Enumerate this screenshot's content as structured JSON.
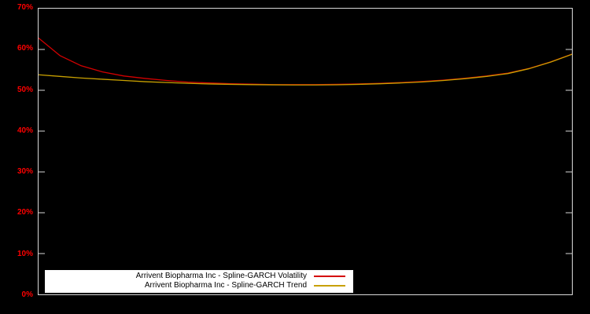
{
  "chart_data": {
    "type": "line",
    "title": "",
    "xlabel": "",
    "ylabel": "",
    "background_color": "#000000",
    "axis_color": "#d9d9d9",
    "tick_label_color": "#ff0000",
    "grid": false,
    "legend_position": "bottom-center-inside",
    "ylim": [
      0,
      70
    ],
    "y_ticks": [
      0,
      10,
      20,
      30,
      40,
      50,
      60,
      70
    ],
    "y_tick_labels": [
      "0%",
      "10%",
      "20%",
      "30%",
      "40%",
      "50%",
      "60%",
      "70%"
    ],
    "x_tick_labels": [],
    "x": [
      0,
      4,
      8,
      12,
      16,
      20,
      24,
      28,
      32,
      36,
      40,
      44,
      48,
      52,
      56,
      60,
      64,
      68,
      72,
      76,
      80,
      84,
      88,
      92,
      96,
      100
    ],
    "series": [
      {
        "name": "Arrivent Biopharma Inc - Spline-GARCH Volatility",
        "color": "#d40000",
        "values": [
          62.8,
          58.5,
          56.0,
          54.5,
          53.5,
          52.9,
          52.4,
          52.0,
          51.8,
          51.6,
          51.5,
          51.4,
          51.4,
          51.4,
          51.45,
          51.55,
          51.7,
          51.9,
          52.15,
          52.5,
          52.95,
          53.5,
          54.2,
          55.35,
          56.95,
          58.85
        ]
      },
      {
        "name": "Arrivent Biopharma Inc - Spline-GARCH Trend",
        "color": "#c8a000",
        "values": [
          53.8,
          53.4,
          53.0,
          52.7,
          52.4,
          52.1,
          51.9,
          51.7,
          51.55,
          51.45,
          51.38,
          51.33,
          51.3,
          51.3,
          51.35,
          51.45,
          51.6,
          51.8,
          52.05,
          52.4,
          52.85,
          53.4,
          54.1,
          55.3,
          56.9,
          58.8
        ]
      }
    ]
  }
}
